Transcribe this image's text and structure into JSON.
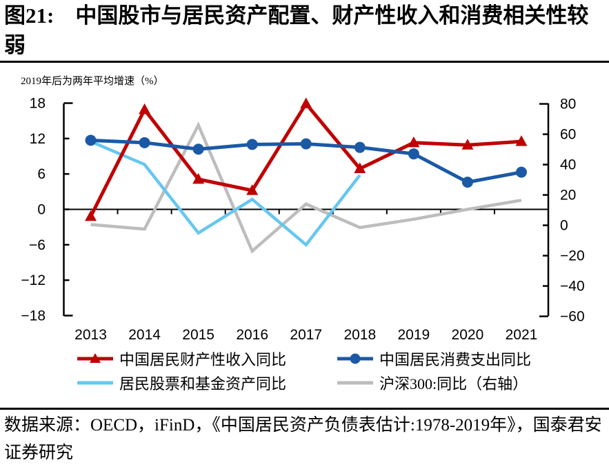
{
  "header": {
    "title": "图21:　中国股市与居民资产配置、财产性收入和消费相关性较弱",
    "subtitle": "2019年后为两年平均增速（%）"
  },
  "footer": {
    "source": "数据来源：OECD，iFinD，《中国居民资产负债表估计:1978-2019年》，国泰君安证券研究"
  },
  "chart_data": {
    "type": "line",
    "title": "中国股市与居民资产配置、财产性收入和消费相关性较弱",
    "x": [
      "2013",
      "2014",
      "2015",
      "2016",
      "2017",
      "2018",
      "2019",
      "2020",
      "2021"
    ],
    "left_axis": {
      "min": -18,
      "max": 18,
      "ticks": [
        18,
        12,
        6,
        0,
        -6,
        -12,
        -18
      ]
    },
    "right_axis": {
      "min": -60,
      "max": 80,
      "ticks": [
        80,
        60,
        40,
        20,
        0,
        -20,
        -40,
        -60
      ]
    },
    "grid": "off",
    "legend_position": "bottom",
    "series": [
      {
        "name": "中国居民财产性收入同比",
        "axis": "left",
        "color": "#c00000",
        "marker": "triangle",
        "values": [
          -1.2,
          16.9,
          5.1,
          3.2,
          17.9,
          6.9,
          11.3,
          10.9,
          11.5
        ]
      },
      {
        "name": "中国居民消费支出同比",
        "axis": "left",
        "color": "#1b59a6",
        "marker": "circle",
        "values": [
          11.7,
          11.3,
          10.2,
          11.0,
          11.1,
          10.5,
          9.4,
          4.6,
          6.3
        ]
      },
      {
        "name": "居民股票和基金资产同比",
        "axis": "left",
        "color": "#66c7f0",
        "marker": "none",
        "values": [
          11.5,
          7.6,
          -4.0,
          1.7,
          -6.0,
          5.8,
          null,
          null,
          null
        ]
      },
      {
        "name": "沪深300:同比（右轴）",
        "axis": "right",
        "color": "#bdbdbd",
        "marker": "none",
        "values": [
          0.5,
          -2.5,
          66,
          -17,
          14,
          -1.5,
          4,
          10.5,
          16.5
        ]
      }
    ]
  }
}
